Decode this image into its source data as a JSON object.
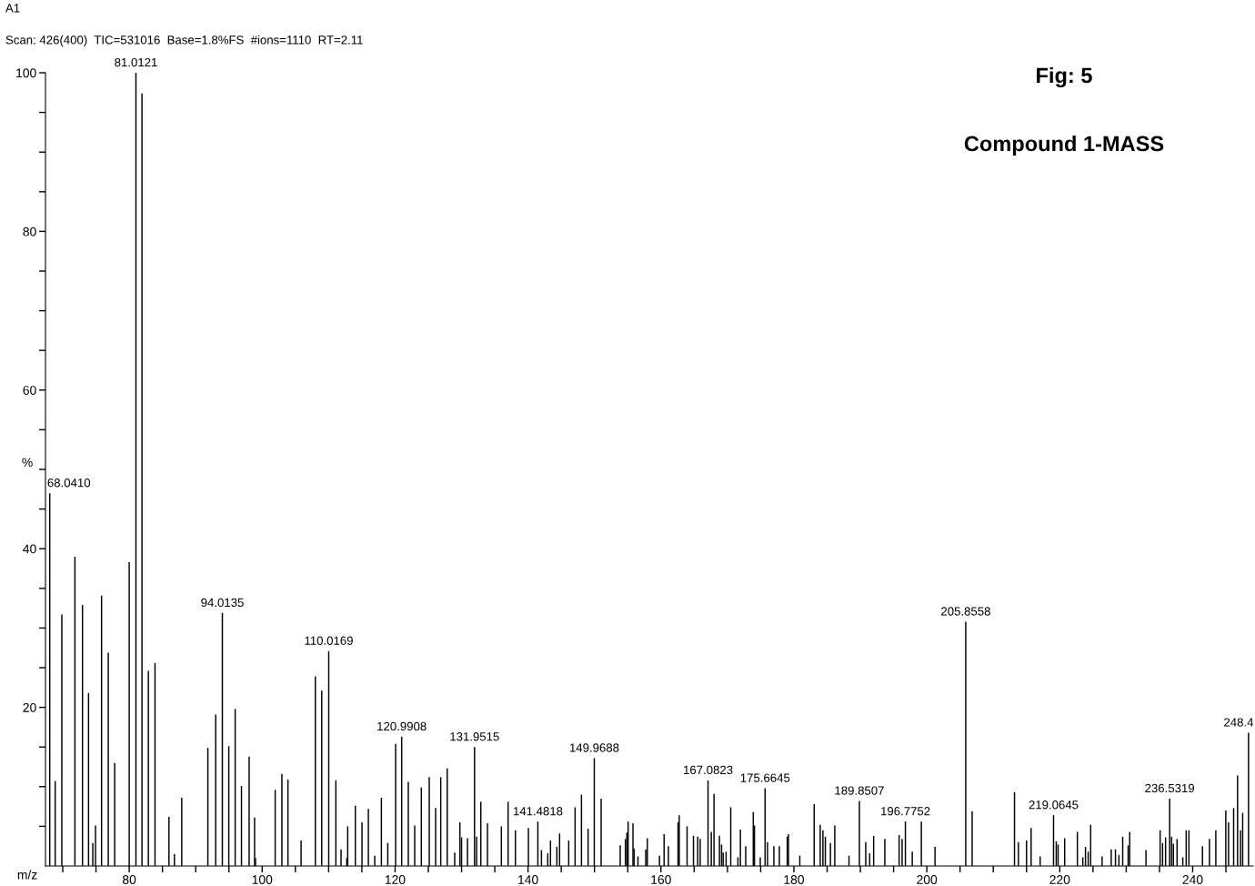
{
  "chart_data": {
    "type": "bar",
    "title": "Fig: 5",
    "subtitle": "Compound 1-MASS",
    "xlabel": "m/z",
    "ylabel": "%",
    "annotations": [
      "A1",
      "Scan: 426(400)  TIC=531016  Base=1.8%FS  #ions=1110  RT=2.11",
      {
        "text": "68.0410",
        "x": 68.041,
        "y": 47.0
      },
      {
        "text": "81.0121",
        "x": 81.0121,
        "y": 100
      },
      {
        "text": "94.0135",
        "x": 94.0135,
        "y": 31.9
      },
      {
        "text": "110.0169",
        "x": 110.0169,
        "y": 27.1
      },
      {
        "text": "120.9908",
        "x": 120.9908,
        "y": 16.3
      },
      {
        "text": "131.9515",
        "x": 131.9515,
        "y": 15.0
      },
      {
        "text": "141.4818",
        "x": 141.4818,
        "y": 5.6
      },
      {
        "text": "149.9688",
        "x": 149.9688,
        "y": 13.6
      },
      {
        "text": "167.0823",
        "x": 167.0823,
        "y": 10.8
      },
      {
        "text": "175.6645",
        "x": 175.6645,
        "y": 9.8
      },
      {
        "text": "189.8507",
        "x": 189.8507,
        "y": 8.2
      },
      {
        "text": "196.7752",
        "x": 196.7752,
        "y": 5.6
      },
      {
        "text": "205.8558",
        "x": 205.8558,
        "y": 30.8
      },
      {
        "text": "219.0645",
        "x": 219.0645,
        "y": 6.4
      },
      {
        "text": "236.5319",
        "x": 236.5319,
        "y": 8.5
      },
      {
        "text": "248.4",
        "x": 248.4,
        "y": 16.8
      }
    ],
    "x": [
      68.041,
      68.86,
      69.86,
      71.83,
      72.97,
      73.88,
      74.52,
      74.93,
      75.84,
      76.85,
      77.81,
      80.0,
      81.0121,
      81.92,
      82.88,
      83.88,
      85.98,
      86.8,
      87.9,
      91.83,
      93.01,
      94.0135,
      94.98,
      95.94,
      96.89,
      98.04,
      98.86,
      99.0,
      101.96,
      102.97,
      103.88,
      105.86,
      108.0,
      108.96,
      110.0169,
      111.09,
      111.87,
      112.73,
      112.87,
      114.02,
      115.02,
      115.98,
      116.94,
      117.94,
      118.9,
      120.08,
      120.9908,
      121.99,
      122.95,
      123.95,
      125.14,
      126.1,
      126.87,
      127.84,
      128.97,
      129.75,
      130.0,
      130.89,
      131.9515,
      132.26,
      132.9,
      133.9,
      135.99,
      137.0,
      138.1,
      140.06,
      141.4818,
      142.02,
      142.97,
      143.38,
      144.34,
      144.75,
      146.12,
      147.08,
      148.04,
      149.04,
      149.9688,
      151.0,
      153.87,
      154.65,
      154.87,
      155.06,
      155.79,
      155.95,
      156.54,
      157.71,
      157.95,
      159.78,
      160.47,
      161.12,
      162.57,
      162.75,
      163.93,
      164.89,
      165.53,
      165.9,
      167.0823,
      167.57,
      167.98,
      168.8,
      169.12,
      169.36,
      169.8,
      170.5,
      171.58,
      171.95,
      172.75,
      173.89,
      174.07,
      174.94,
      175.6645,
      176.03,
      176.99,
      177.81,
      179.0,
      179.18,
      180.89,
      183.05,
      183.96,
      184.37,
      184.73,
      185.5,
      186.15,
      188.29,
      189.8507,
      190.81,
      191.4,
      192.0,
      193.68,
      195.83,
      196.28,
      196.7752,
      197.81,
      199.18,
      201.23,
      205.8558,
      206.82,
      213.19,
      213.78,
      215.0,
      215.69,
      217.05,
      219.0645,
      219.47,
      219.75,
      220.74,
      222.65,
      223.47,
      223.87,
      224.28,
      224.65,
      226.37,
      227.74,
      228.38,
      228.9,
      229.47,
      230.29,
      230.52,
      232.97,
      235.1,
      235.47,
      235.92,
      236.5319,
      236.83,
      237.1,
      237.65,
      238.51,
      239.02,
      239.43,
      241.47,
      242.52,
      243.48,
      244.98,
      245.39,
      246.16,
      246.75,
      247.2,
      247.52,
      248.4
    ],
    "values": [
      47.0,
      10.7,
      31.7,
      39.0,
      32.9,
      21.8,
      2.9,
      5.1,
      34.1,
      26.9,
      13.0,
      38.3,
      100,
      97.4,
      24.6,
      25.6,
      6.2,
      1.5,
      8.6,
      14.9,
      19.1,
      31.9,
      15.1,
      19.8,
      10.1,
      13.8,
      6.1,
      1.0,
      9.6,
      11.6,
      10.9,
      3.2,
      23.9,
      22.1,
      27.1,
      10.8,
      2.1,
      1.0,
      5.0,
      7.6,
      5.5,
      7.2,
      1.3,
      8.6,
      2.9,
      15.4,
      16.3,
      10.6,
      5.1,
      9.9,
      11.2,
      7.3,
      11.2,
      12.3,
      1.7,
      5.5,
      3.6,
      3.5,
      15.0,
      3.7,
      8.1,
      5.4,
      5.0,
      8.1,
      4.5,
      4.8,
      5.6,
      2.0,
      1.6,
      3.2,
      2.4,
      4.1,
      3.2,
      7.4,
      9.0,
      4.7,
      13.6,
      8.5,
      2.6,
      3.4,
      4.2,
      5.6,
      5.4,
      2.2,
      1.2,
      2.1,
      3.5,
      1.3,
      4.0,
      2.5,
      5.5,
      6.4,
      5.0,
      3.8,
      3.7,
      3.4,
      10.8,
      4.3,
      9.1,
      3.8,
      2.7,
      1.7,
      1.8,
      7.4,
      1.1,
      4.6,
      2.5,
      6.8,
      5.1,
      1.1,
      9.8,
      3.0,
      2.5,
      2.5,
      3.7,
      4.0,
      1.3,
      7.8,
      5.2,
      4.5,
      3.7,
      2.9,
      5.1,
      1.3,
      8.2,
      3.0,
      1.6,
      3.8,
      3.4,
      3.9,
      3.4,
      5.6,
      1.8,
      5.6,
      2.4,
      30.8,
      6.9,
      9.3,
      3.0,
      3.2,
      4.8,
      1.2,
      6.4,
      3.1,
      2.7,
      3.5,
      4.3,
      1.1,
      2.4,
      1.8,
      5.2,
      1.2,
      2.1,
      2.1,
      1.4,
      3.7,
      2.6,
      4.3,
      2.0,
      4.5,
      2.9,
      3.6,
      8.5,
      3.7,
      2.8,
      3.4,
      1.1,
      4.5,
      4.5,
      2.5,
      3.4,
      4.5,
      7.0,
      5.5,
      7.3,
      11.4,
      4.5,
      6.7,
      16.8
    ],
    "color": "#000000",
    "xlim": [
      67.4,
      249.1
    ],
    "xticks": [
      {
        "value": 70,
        "label": null
      },
      {
        "value": 75,
        "label": null
      },
      80,
      {
        "value": 85,
        "label": null
      },
      {
        "value": 90,
        "label": null
      },
      {
        "value": 95,
        "label": null
      },
      100,
      {
        "value": 105,
        "label": null
      },
      {
        "value": 110,
        "label": null
      },
      {
        "value": 115,
        "label": null
      },
      120,
      {
        "value": 125,
        "label": null
      },
      {
        "value": 130,
        "label": null
      },
      {
        "value": 135,
        "label": null
      },
      140,
      {
        "value": 145,
        "label": null
      },
      {
        "value": 150,
        "label": null
      },
      {
        "value": 155,
        "label": null
      },
      160,
      {
        "value": 165,
        "label": null
      },
      {
        "value": 170,
        "label": null
      },
      {
        "value": 175,
        "label": null
      },
      180,
      {
        "value": 185,
        "label": null
      },
      {
        "value": 190,
        "label": null
      },
      {
        "value": 195,
        "label": null
      },
      200,
      {
        "value": 205,
        "label": null
      },
      {
        "value": 210,
        "label": null
      },
      {
        "value": 215,
        "label": null
      },
      220,
      {
        "value": 225,
        "label": null
      },
      {
        "value": 230,
        "label": null
      },
      {
        "value": 235,
        "label": null
      },
      240,
      {
        "value": 245,
        "label": null
      }
    ],
    "ylim": [
      0,
      100
    ],
    "yticks": [
      {
        "value": 5,
        "label": null
      },
      {
        "value": 10,
        "label": null
      },
      {
        "value": 15,
        "label": null
      },
      20,
      {
        "value": 25,
        "label": null
      },
      {
        "value": 30,
        "label": null
      },
      {
        "value": 35,
        "label": null
      },
      40,
      {
        "value": 45,
        "label": null
      },
      {
        "value": 50,
        "label": null
      },
      {
        "value": 55,
        "label": null
      },
      60,
      {
        "value": 65,
        "label": null
      },
      {
        "value": 70,
        "label": null
      },
      {
        "value": 75,
        "label": null
      },
      80,
      {
        "value": 85,
        "label": null
      },
      {
        "value": 90,
        "label": null
      },
      {
        "value": 95,
        "label": null
      },
      100
    ],
    "grid": false,
    "legend": false
  }
}
